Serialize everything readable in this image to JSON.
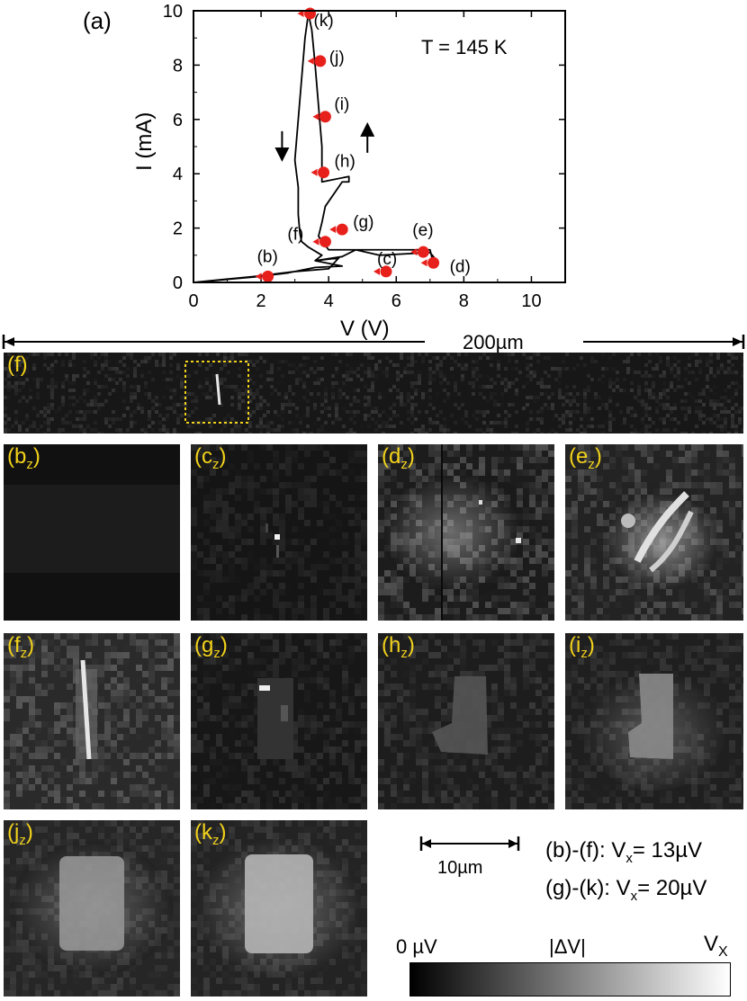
{
  "figure": {
    "panel_a_label": "(a)",
    "temperature_label": "T = 145 K",
    "scale_top_label": "200µm",
    "scale_bottom_label": "10µm",
    "line1": {
      "range": "(b)-(f): V",
      "sub": "x",
      "value": "= 13µV"
    },
    "line2": {
      "range": "(g)-(k): V",
      "sub": "x",
      "value": "= 20µV"
    },
    "colorbar": {
      "min_label": "0 µV",
      "mid_label": "|ΔV|",
      "max_label": "V",
      "max_sub": "X"
    },
    "accent_color": "#f2d21b",
    "marker_color": "#e8201c"
  },
  "chart_data": {
    "type": "line",
    "xlabel": "V (V)",
    "ylabel": "I (mA)",
    "xlim": [
      0,
      11
    ],
    "ylim": [
      0,
      10
    ],
    "xticks": [
      "0",
      "2",
      "4",
      "6",
      "8",
      "10"
    ],
    "yticks": [
      "0",
      "2",
      "4",
      "6",
      "8",
      "10"
    ],
    "curve": {
      "x": [
        0,
        1.8,
        3.0,
        4.0,
        4.3,
        3.6,
        4.4,
        4.8,
        5.5,
        7.0,
        7.2,
        7.1,
        7.0,
        4.0,
        3.7,
        3.8,
        3.9,
        4.4,
        4.6,
        4.6,
        3.8,
        3.8,
        3.7,
        3.6,
        3.5,
        3.4,
        3.3,
        3.2,
        3.1,
        3.0,
        3.1,
        3.1,
        3.15,
        3.2,
        3.4,
        3.8,
        3.6,
        4.4,
        3.6,
        2.8,
        1.8,
        0
      ],
      "y": [
        0,
        0.22,
        0.4,
        0.5,
        0.9,
        0.8,
        0.95,
        1.2,
        1.0,
        1.1,
        0.8,
        0.7,
        1.2,
        1.2,
        1.7,
        2.2,
        2.8,
        3.7,
        3.7,
        3.9,
        3.7,
        5.0,
        6.5,
        8.0,
        9.3,
        9.9,
        9.0,
        7.5,
        6.0,
        4.5,
        3.5,
        2.5,
        1.8,
        1.5,
        1.3,
        1.0,
        0.8,
        0.6,
        0.55,
        0.35,
        0.2,
        0
      ]
    },
    "points": [
      {
        "label": "(b)",
        "x": 2.2,
        "y": 0.22
      },
      {
        "label": "(c)",
        "x": 5.7,
        "y": 0.4
      },
      {
        "label": "(d)",
        "x": 7.1,
        "y": 0.72
      },
      {
        "label": "(e)",
        "x": 6.8,
        "y": 1.12
      },
      {
        "label": "(f)",
        "x": 3.9,
        "y": 1.5
      },
      {
        "label": "(g)",
        "x": 4.4,
        "y": 1.95
      },
      {
        "label": "(h)",
        "x": 3.85,
        "y": 4.05
      },
      {
        "label": "(i)",
        "x": 3.9,
        "y": 6.1
      },
      {
        "label": "(j)",
        "x": 3.75,
        "y": 8.15
      },
      {
        "label": "(k)",
        "x": 3.45,
        "y": 9.9
      }
    ],
    "arrows": [
      {
        "direction": "down",
        "x": 3.5,
        "y": 5.4
      },
      {
        "direction": "up",
        "x": 5.2,
        "y": 5.6
      }
    ]
  },
  "panels": {
    "strip": {
      "label": "(f)"
    },
    "b": {
      "letter": "(b",
      "sub": "z",
      "close": ")"
    },
    "c": {
      "letter": "(c",
      "sub": "z",
      "close": ")"
    },
    "d": {
      "letter": "(d",
      "sub": "z",
      "close": ")"
    },
    "e": {
      "letter": "(e",
      "sub": "z",
      "close": ")"
    },
    "f": {
      "letter": "(f",
      "sub": "z",
      "close": ")"
    },
    "g": {
      "letter": "(g",
      "sub": "z",
      "close": ")"
    },
    "h": {
      "letter": "(h",
      "sub": "z",
      "close": ")"
    },
    "i": {
      "letter": "(i",
      "sub": "z",
      "close": ")"
    },
    "j": {
      "letter": "(j",
      "sub": "z",
      "close": ")"
    },
    "k": {
      "letter": "(k",
      "sub": "z",
      "close": ")"
    }
  }
}
